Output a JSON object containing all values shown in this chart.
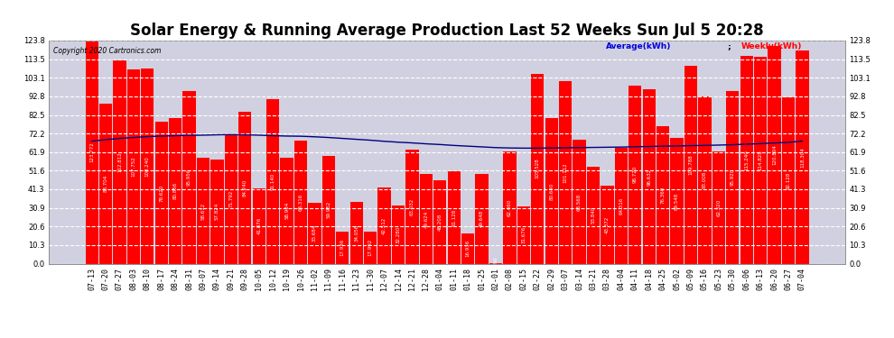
{
  "title": "Solar Energy & Running Average Production Last 52 Weeks Sun Jul 5 20:28",
  "copyright": "Copyright 2020 Cartronics.com",
  "legend_avg": "Average(kWh)",
  "legend_weekly": "Weekly(kWh)",
  "bar_color": "#ff0000",
  "avg_line_color": "#0000cc",
  "background_color": "#ffffff",
  "plot_bg_color": "#d0d0e0",
  "grid_color": "#ffffff",
  "yticks": [
    0.0,
    10.3,
    20.6,
    30.9,
    41.3,
    51.6,
    61.9,
    72.2,
    82.5,
    92.8,
    103.1,
    113.5,
    123.8
  ],
  "categories": [
    "07-13",
    "07-20",
    "07-27",
    "08-03",
    "08-10",
    "08-17",
    "08-24",
    "08-31",
    "09-07",
    "09-14",
    "09-21",
    "09-28",
    "10-05",
    "10-12",
    "10-19",
    "10-26",
    "11-02",
    "11-09",
    "11-16",
    "11-23",
    "11-30",
    "12-07",
    "12-14",
    "12-21",
    "12-28",
    "01-04",
    "01-11",
    "01-18",
    "01-25",
    "02-01",
    "02-08",
    "02-15",
    "02-22",
    "02-29",
    "03-07",
    "03-14",
    "03-21",
    "03-28",
    "04-04",
    "04-11",
    "04-18",
    "04-25",
    "05-02",
    "05-09",
    "05-16",
    "05-23",
    "05-30",
    "06-06",
    "06-13",
    "06-20",
    "06-27",
    "07-04"
  ],
  "weekly_values": [
    123.772,
    88.704,
    112.812,
    107.752,
    108.24,
    78.62,
    80.856,
    95.956,
    58.612,
    57.824,
    71.792,
    84.24,
    41.876,
    91.14,
    58.984,
    68.316,
    33.684,
    59.952,
    17.936,
    34.056,
    17.992,
    42.512,
    32.28,
    63.032,
    49.624,
    46.208,
    51.128,
    16.936,
    49.648,
    0.096,
    62.46,
    31.676,
    105.528,
    80.64,
    101.112,
    68.568,
    53.84,
    43.372,
    64.316,
    98.72,
    96.632,
    76.36,
    69.548,
    109.788,
    93.008,
    62.32,
    95.92,
    115.24,
    114.828,
    120.804,
    92.128,
    118.304
  ],
  "avg_values": [
    68.0,
    68.8,
    69.5,
    70.0,
    70.5,
    70.8,
    71.0,
    71.2,
    71.3,
    71.5,
    71.6,
    71.5,
    71.3,
    71.0,
    70.8,
    70.7,
    70.4,
    70.0,
    69.5,
    69.0,
    68.5,
    67.9,
    67.4,
    67.0,
    66.5,
    66.1,
    65.6,
    65.2,
    64.8,
    64.4,
    64.2,
    64.1,
    64.1,
    64.2,
    64.3,
    64.4,
    64.5,
    64.6,
    64.7,
    64.9,
    65.0,
    65.2,
    65.3,
    65.5,
    65.6,
    65.8,
    66.0,
    66.3,
    66.6,
    67.0,
    67.3,
    68.0
  ],
  "ylim": [
    0.0,
    123.8
  ],
  "title_fontsize": 12,
  "tick_fontsize": 6.0,
  "bar_label_fontsize": 4.0
}
